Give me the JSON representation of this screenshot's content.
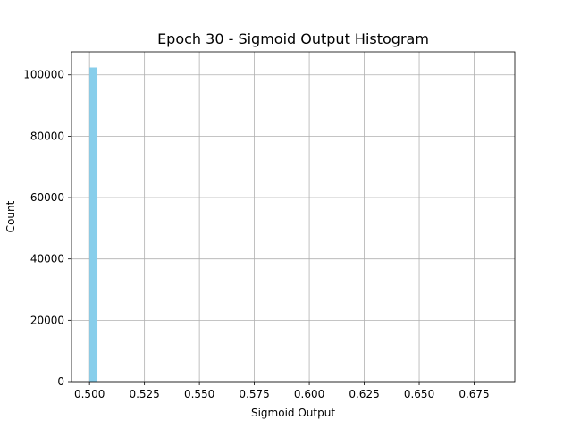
{
  "chart_data": {
    "type": "bar",
    "title": "Epoch 30 - Sigmoid Output Histogram",
    "xlabel": "Sigmoid Output",
    "ylabel": "Count",
    "xlim": [
      0.4918,
      0.6935
    ],
    "ylim": [
      0,
      107500
    ],
    "xticks": [
      "0.500",
      "0.525",
      "0.550",
      "0.575",
      "0.600",
      "0.625",
      "0.650",
      "0.675"
    ],
    "yticks": [
      "0",
      "20000",
      "40000",
      "60000",
      "80000",
      "100000"
    ],
    "bins": [
      {
        "x0": 0.5,
        "x1": 0.5036,
        "count": 102400
      }
    ],
    "bar_color": "#87ceeb",
    "grid": true
  }
}
